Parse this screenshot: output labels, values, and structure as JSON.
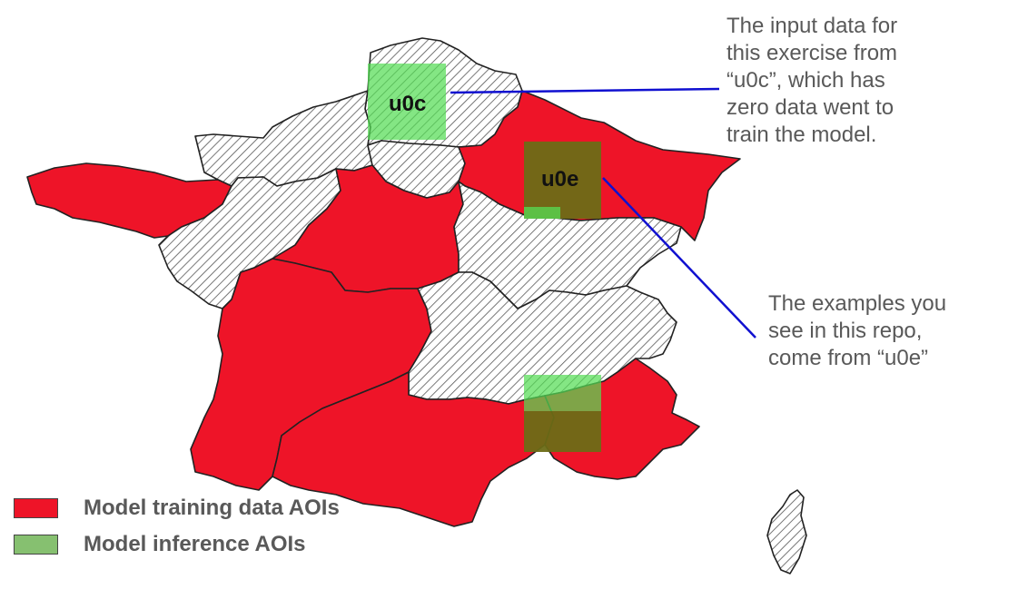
{
  "colors": {
    "training": "#ee1428",
    "inference": "#86c070",
    "inference_box": "#55dd55",
    "overlap_box": "#6b6b16",
    "callout_line": "#1010d0",
    "hatch_line": "#555555",
    "border": "#222222"
  },
  "aois": {
    "u0c": {
      "label": "u0c"
    },
    "u0e": {
      "label": "u0e"
    }
  },
  "annotations": {
    "top": {
      "lines": [
        "The input data for",
        "this exercise from",
        "“u0c”, which has",
        "zero data went to",
        "train the model."
      ]
    },
    "bottom": {
      "lines": [
        "The examples you",
        "see in this repo,",
        "come from “u0e”"
      ]
    }
  },
  "legend": {
    "training_label": "Model training data AOIs",
    "inference_label": "Model inference AOIs"
  }
}
